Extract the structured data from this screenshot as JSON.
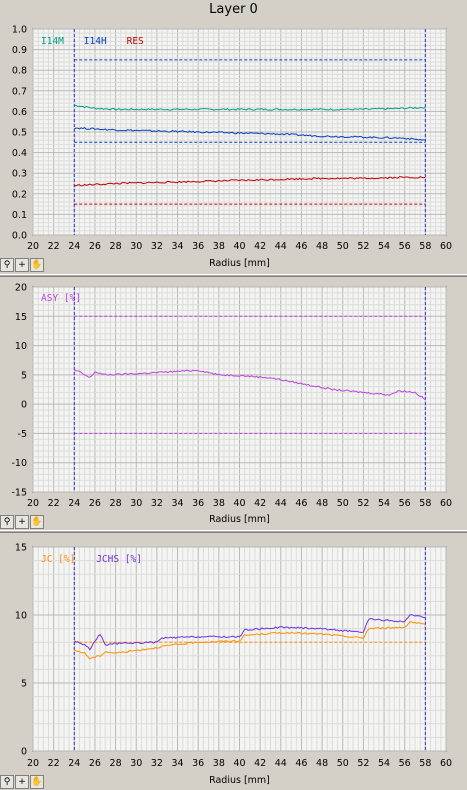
{
  "window": {
    "title": "Layer 0"
  },
  "toolbar": {
    "zoom_icon": "magnifier-icon",
    "crosshair_icon": "crosshair-icon",
    "pan_icon": "hand-icon"
  },
  "chart_data": [
    {
      "type": "line",
      "xlabel": "Radius [mm]",
      "xlim": [
        20,
        60
      ],
      "ylim": [
        0,
        1.0
      ],
      "xticks": [
        "20",
        "22",
        "24",
        "26",
        "28",
        "30",
        "32",
        "34",
        "36",
        "38",
        "40",
        "42",
        "44",
        "46",
        "48",
        "50",
        "52",
        "54",
        "56",
        "58",
        "60"
      ],
      "yticks": [
        "0.0",
        "0.1",
        "0.2",
        "0.3",
        "0.4",
        "0.5",
        "0.6",
        "0.7",
        "0.8",
        "0.9",
        "1.0"
      ],
      "x_range_markers": [
        24,
        58
      ],
      "grid": true,
      "legend_position": "top-left",
      "series": [
        {
          "name": "I14M",
          "color": "#00a080",
          "x": [
            24,
            26,
            28,
            32,
            36,
            40,
            44,
            48,
            52,
            56,
            58
          ],
          "values": [
            0.63,
            0.615,
            0.61,
            0.61,
            0.61,
            0.61,
            0.61,
            0.61,
            0.61,
            0.615,
            0.62
          ]
        },
        {
          "name": "I14H",
          "color": "#0040c0",
          "x": [
            24,
            26,
            28,
            32,
            36,
            40,
            44,
            48,
            52,
            56,
            58
          ],
          "values": [
            0.52,
            0.515,
            0.51,
            0.505,
            0.5,
            0.495,
            0.49,
            0.48,
            0.475,
            0.47,
            0.46
          ]
        },
        {
          "name": "RES",
          "color": "#c00000",
          "x": [
            24,
            26,
            28,
            32,
            36,
            40,
            44,
            48,
            52,
            56,
            58
          ],
          "values": [
            0.24,
            0.245,
            0.25,
            0.255,
            0.26,
            0.265,
            0.27,
            0.275,
            0.275,
            0.28,
            0.28
          ]
        }
      ],
      "limits": [
        {
          "color": "#0040c0",
          "value": 0.85
        },
        {
          "color": "#0040c0",
          "value": 0.45
        },
        {
          "color": "#c00000",
          "value": 0.15
        }
      ]
    },
    {
      "type": "line",
      "xlabel": "Radius [mm]",
      "xlim": [
        20,
        60
      ],
      "ylim": [
        -15,
        20
      ],
      "xticks": [
        "20",
        "22",
        "24",
        "26",
        "28",
        "30",
        "32",
        "34",
        "36",
        "38",
        "40",
        "42",
        "44",
        "46",
        "48",
        "50",
        "52",
        "54",
        "56",
        "58",
        "60"
      ],
      "yticks": [
        "-15",
        "-10",
        "-5",
        "0",
        "5",
        "10",
        "15",
        "20"
      ],
      "x_range_markers": [
        24,
        58
      ],
      "grid": true,
      "legend_position": "top-left",
      "series": [
        {
          "name": "ASY [%]",
          "color": "#c040e0",
          "x": [
            24,
            24.5,
            25.5,
            26,
            27,
            30,
            33,
            36,
            38,
            40,
            43,
            46,
            49,
            52,
            54.5,
            55.5,
            57,
            58
          ],
          "values": [
            5.8,
            5.5,
            4.5,
            5.5,
            5.0,
            5.2,
            5.5,
            5.8,
            5.0,
            4.9,
            4.5,
            3.5,
            2.5,
            2.0,
            1.6,
            2.3,
            2.0,
            0.8
          ]
        }
      ],
      "limits": [
        {
          "color": "#c040e0",
          "value": 15
        },
        {
          "color": "#c040e0",
          "value": -5
        }
      ]
    },
    {
      "type": "line",
      "xlabel": "Radius [mm]",
      "xlim": [
        20,
        60
      ],
      "ylim": [
        0,
        15
      ],
      "xticks": [
        "20",
        "22",
        "24",
        "26",
        "28",
        "30",
        "32",
        "34",
        "36",
        "38",
        "40",
        "42",
        "44",
        "46",
        "48",
        "50",
        "52",
        "54",
        "56",
        "58",
        "60"
      ],
      "yticks": [
        "0",
        "5",
        "10",
        "15"
      ],
      "x_range_markers": [
        24,
        58
      ],
      "grid": true,
      "legend_position": "top-left",
      "series": [
        {
          "name": "JC [%]",
          "color": "#ff9000",
          "x": [
            24,
            25,
            25.5,
            26.5,
            27,
            28,
            32,
            32.5,
            36,
            40,
            40.5,
            44,
            48,
            52,
            52.5,
            56,
            56.5,
            58
          ],
          "values": [
            7.4,
            7.2,
            6.8,
            7.0,
            7.3,
            7.2,
            7.6,
            7.7,
            8.0,
            8.1,
            8.5,
            8.7,
            8.6,
            8.3,
            9.0,
            9.1,
            9.5,
            9.3
          ]
        },
        {
          "name": "JCHS [%]",
          "color": "#7030e0",
          "x": [
            24,
            25,
            25.5,
            26.5,
            27,
            28,
            32,
            32.5,
            36,
            40,
            40.5,
            44,
            48,
            52,
            52.5,
            56,
            56.5,
            58
          ],
          "values": [
            8.1,
            7.8,
            7.5,
            8.6,
            7.8,
            7.9,
            8.0,
            8.3,
            8.4,
            8.4,
            8.9,
            9.1,
            9.0,
            8.7,
            9.7,
            9.5,
            10.0,
            9.8
          ]
        }
      ],
      "limits": [
        {
          "color": "#ff9000",
          "value": 8.0
        }
      ]
    }
  ]
}
